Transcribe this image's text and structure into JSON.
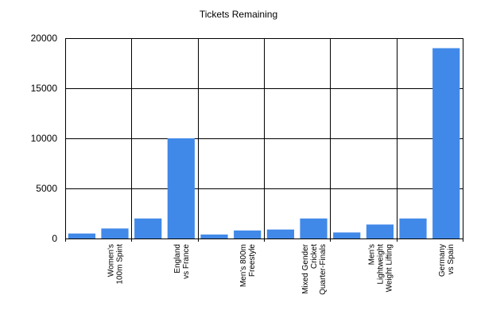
{
  "chart_data": {
    "type": "bar",
    "title": "Tickets Remaining",
    "xlabel": "",
    "ylabel": "",
    "ylim": [
      0,
      20000
    ],
    "yticks": [
      0,
      5000,
      10000,
      15000,
      20000
    ],
    "grid": true,
    "bar_color": "#4189e8",
    "categories": [
      "",
      [
        "Women's",
        "100m Spint"
      ],
      "",
      [
        "England",
        "vs France"
      ],
      "",
      [
        "Men's 800m",
        "Freestyle"
      ],
      "",
      [
        "Mixed Gender",
        "Cricket",
        "Quarter-Finals"
      ],
      "",
      [
        "Men's",
        "Lightweight",
        "Weight Lifting"
      ],
      "",
      [
        "Germany",
        "vs Spain"
      ]
    ],
    "values": [
      500,
      1000,
      2000,
      10000,
      400,
      800,
      900,
      2000,
      600,
      1400,
      2000,
      19000
    ]
  }
}
